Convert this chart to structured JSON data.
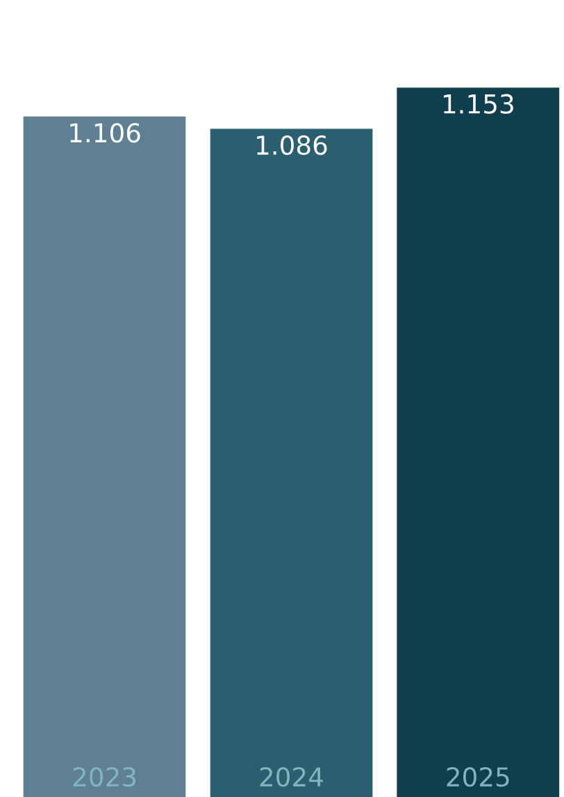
{
  "chart_data": {
    "type": "bar",
    "categories": [
      "2023",
      "2024",
      "2025"
    ],
    "values": [
      1.106,
      1.086,
      1.153
    ],
    "colors": [
      "#5f7f92",
      "#2b5f70",
      "#0f3e4e"
    ],
    "data_labels": true
  }
}
